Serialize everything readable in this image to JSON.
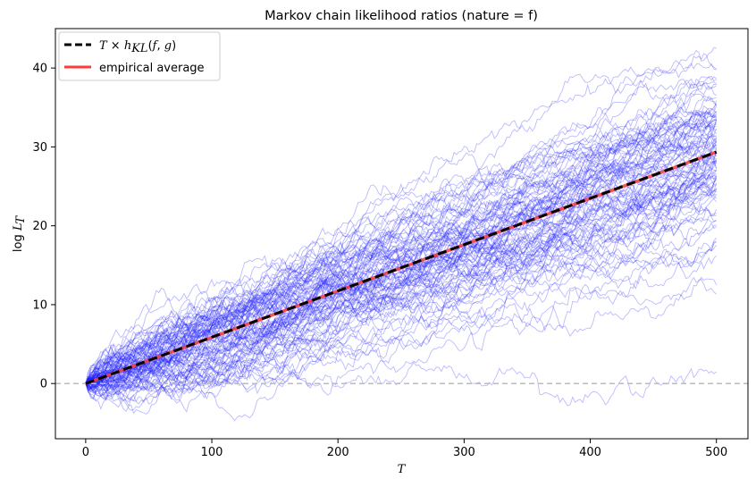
{
  "chart_data": {
    "type": "line",
    "title": "Markov chain likelihood ratios (nature = f)",
    "xlabel": "T",
    "ylabel": "log L_T",
    "xlim": [
      -24,
      525
    ],
    "ylim": [
      -7,
      45
    ],
    "x_ticks": [
      0,
      100,
      200,
      300,
      400,
      500
    ],
    "y_ticks": [
      0,
      10,
      20,
      30,
      40
    ],
    "x_tick_labels": [
      "0",
      "100",
      "200",
      "300",
      "400",
      "500"
    ],
    "y_tick_labels": [
      "0",
      "10",
      "20",
      "30",
      "40"
    ],
    "grid": false,
    "legend_position": "top-left",
    "reference_line": {
      "y": 0,
      "style": "dashed",
      "color": "#bbbbbb"
    },
    "theory_line": {
      "legend_label": "T × h_KL(f, g)",
      "slope": 0.0587,
      "color": "#000000",
      "style": "dashed"
    },
    "average_line": {
      "name": "empirical average",
      "slope": 0.0587,
      "color": "#ff3b3b",
      "style": "solid"
    },
    "simulated_paths": {
      "count": 100,
      "color": "#1f1fff",
      "opacity": 0.3,
      "x_max": 500,
      "final_values_range": [
        1.5,
        42.5
      ]
    },
    "legend_entries": [
      "T × h_KL(f, g)",
      "empirical average"
    ]
  }
}
